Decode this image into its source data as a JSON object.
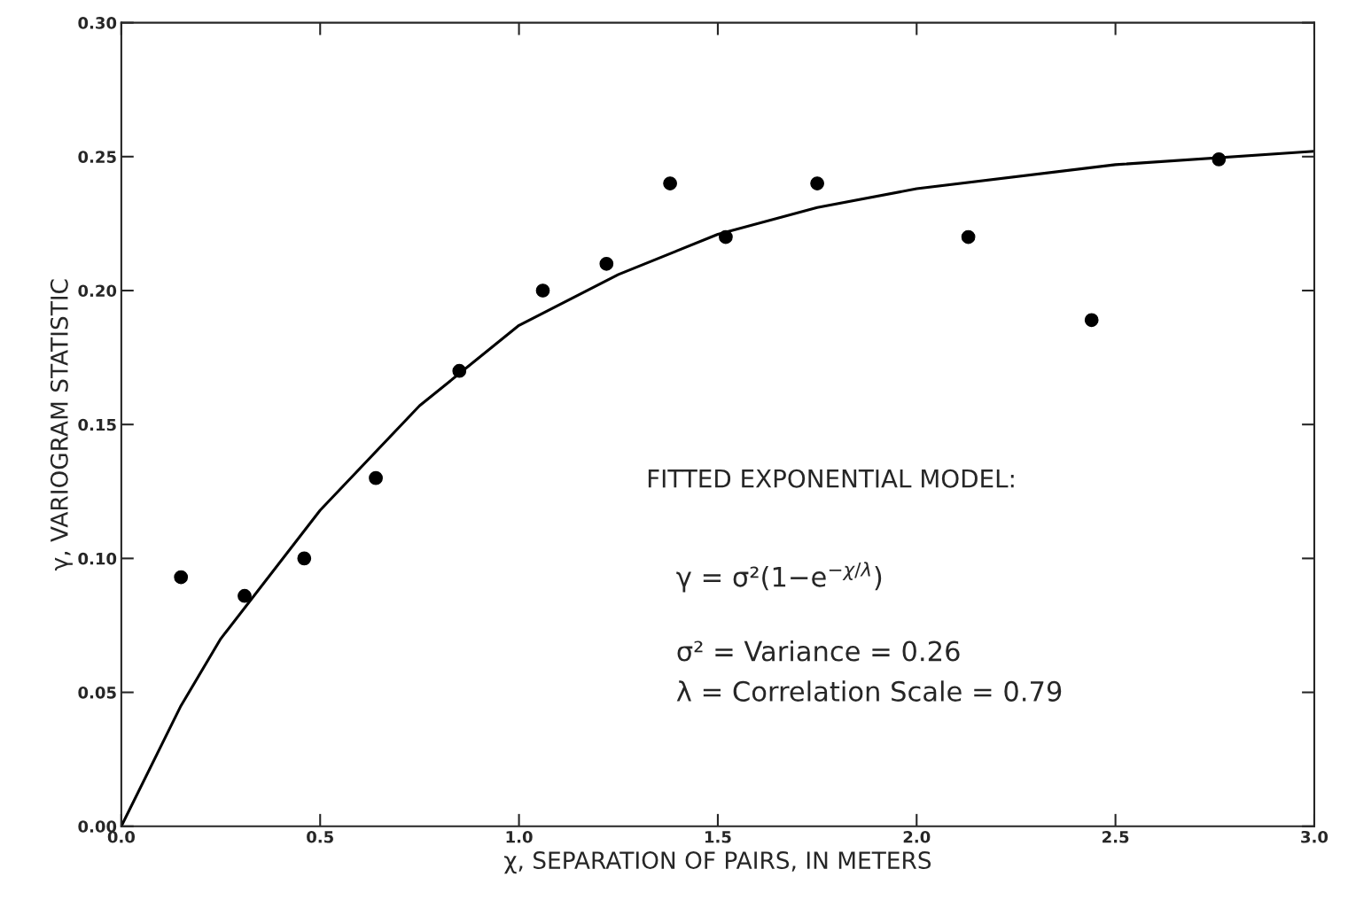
{
  "chart_data": {
    "type": "scatter",
    "xlabel": "χ, SEPARATION OF PAIRS, IN METERS",
    "ylabel": "γ, VARIOGRAM STATISTIC",
    "series": [
      {
        "color": "#000000",
        "marker": "circle",
        "x": [
          0.15,
          0.31,
          0.46,
          0.64,
          0.85,
          1.06,
          1.22,
          1.38,
          1.52,
          1.75,
          2.13,
          2.44,
          2.76
        ],
        "values": [
          0.093,
          0.086,
          0.1,
          0.13,
          0.17,
          0.2,
          0.21,
          0.24,
          0.22,
          0.24,
          0.22,
          0.189,
          0.249
        ]
      },
      {
        "type": "line",
        "color": "#000000",
        "line_style": "solid",
        "x": [
          0,
          0.15,
          0.25,
          0.5,
          0.75,
          1.0,
          1.25,
          1.5,
          1.75,
          2.0,
          2.5,
          3.0
        ],
        "values": [
          0,
          0.045,
          0.07,
          0.118,
          0.157,
          0.187,
          0.206,
          0.221,
          0.231,
          0.238,
          0.247,
          0.252
        ]
      }
    ],
    "xlim": [
      0,
      3.0
    ],
    "ylim": [
      0,
      0.3
    ],
    "xticks": [
      {
        "value": 0,
        "label": "0.0"
      },
      {
        "value": 0.5,
        "label": "0.5"
      },
      {
        "value": 1.0,
        "label": "1.0"
      },
      {
        "value": 1.5,
        "label": "1.5"
      },
      {
        "value": 2.0,
        "label": "2.0"
      },
      {
        "value": 2.5,
        "label": "2.5"
      },
      {
        "value": 3.0,
        "label": "3.0"
      }
    ],
    "yticks": [
      {
        "value": 0,
        "label": "0.00"
      },
      {
        "value": 0.05,
        "label": "0.05"
      },
      {
        "value": 0.1,
        "label": "0.10"
      },
      {
        "value": 0.15,
        "label": "0.15"
      },
      {
        "value": 0.2,
        "label": "0.20"
      },
      {
        "value": 0.25,
        "label": "0.25"
      },
      {
        "value": 0.3,
        "label": "0.30"
      }
    ],
    "grid": false,
    "annotations": [
      "FITTED EXPONENTIAL MODEL:",
      "γ = σ²(1−e$^{−χ/λ}$)",
      "σ² = Variance = 0.26",
      "λ = Correlation Scale = 0.79"
    ]
  }
}
